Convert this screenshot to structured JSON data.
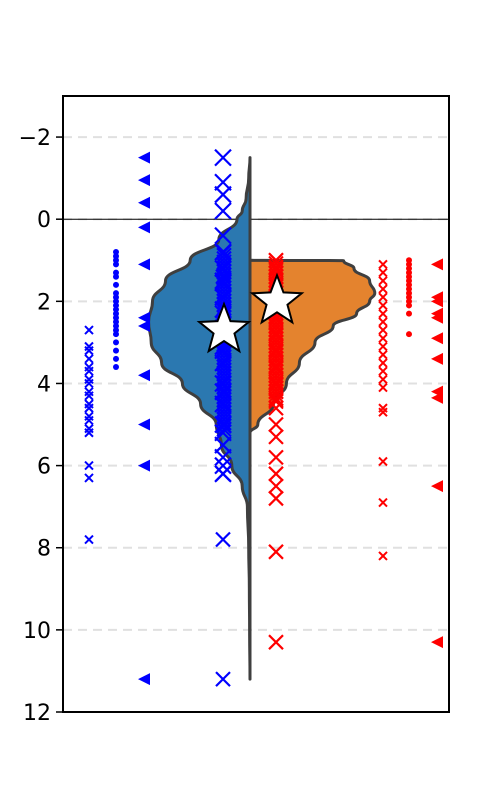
{
  "chart_data": {
    "type": "violin",
    "orientation": "vertical",
    "y_inverted": true,
    "ylim": [
      -3,
      12
    ],
    "yticks": [
      -2,
      0,
      2,
      4,
      6,
      8,
      10,
      12
    ],
    "ytick_labels": [
      "−2",
      "0",
      "2",
      "4",
      "6",
      "8",
      "10",
      "12"
    ],
    "x_ticks_shown": false,
    "grid": "horizontal dashed",
    "reference_line_y": 0,
    "colors": {
      "left_violin": "#2b78b0",
      "right_violin": "#e4832e",
      "violin_edge": "#3f3f3f",
      "left_points": "#0000ff",
      "right_points": "#ff0000",
      "grid": "#e0e0e0",
      "star_fill": "#ffffff"
    },
    "series": [
      {
        "side": "left",
        "color": "#0000ff",
        "violin_profile": [
          [
            -1.5,
            0.0
          ],
          [
            -1.0,
            0.01
          ],
          [
            -0.5,
            0.03
          ],
          [
            -0.2,
            0.06
          ],
          [
            0.0,
            0.1
          ],
          [
            0.5,
            0.24
          ],
          [
            1.0,
            0.46
          ],
          [
            1.5,
            0.65
          ],
          [
            2.0,
            0.75
          ],
          [
            2.5,
            0.78
          ],
          [
            3.0,
            0.76
          ],
          [
            3.5,
            0.68
          ],
          [
            4.0,
            0.52
          ],
          [
            4.5,
            0.38
          ],
          [
            5.0,
            0.26
          ],
          [
            5.5,
            0.22
          ],
          [
            6.0,
            0.14
          ],
          [
            6.5,
            0.06
          ],
          [
            7.0,
            0.02
          ],
          [
            8.0,
            0.01
          ],
          [
            9.0,
            0.005
          ],
          [
            10.0,
            0.003
          ],
          [
            11.2,
            0.0
          ]
        ],
        "mean": 2.7,
        "strip_x": [
          1.4,
          6.2,
          11.2,
          7.8
        ],
        "strip_y": [
          1.5,
          1.55,
          1.9,
          2.3,
          2.7,
          3.1,
          3.5,
          4.0,
          4.5,
          5.0,
          5.5,
          6.0,
          6.2,
          5.8,
          5.2,
          4.2,
          3.2,
          2.2,
          1.2,
          0.8,
          0.4,
          -0.2,
          -0.6,
          -0.9,
          -1.5
        ],
        "strip_dots": [
          0.8,
          0.9,
          1.0,
          1.1,
          1.3,
          1.4,
          1.6,
          1.8,
          1.9,
          2.0,
          2.1,
          2.2,
          2.3,
          2.4,
          2.5,
          2.6,
          2.7,
          2.8,
          3.0,
          3.2,
          3.4,
          3.6
        ],
        "strip_triangles": [
          -1.5,
          -0.95,
          -0.4,
          0.2,
          1.1,
          2.4,
          2.6,
          3.8,
          5.0,
          6.0,
          11.2
        ],
        "strip_xs_small": [
          2.7,
          3.1,
          3.2,
          3.4,
          3.6,
          3.7,
          3.9,
          4.0,
          4.2,
          4.3,
          4.5,
          4.6,
          4.8,
          4.9,
          5.1,
          5.2,
          6.0,
          6.3,
          7.8
        ]
      },
      {
        "side": "right",
        "color": "#ff0000",
        "violin_profile": [
          [
            1.0,
            0.0
          ],
          [
            1.01,
            0.72
          ],
          [
            1.2,
            0.8
          ],
          [
            1.5,
            0.92
          ],
          [
            1.8,
            0.96
          ],
          [
            2.0,
            0.92
          ],
          [
            2.3,
            0.82
          ],
          [
            2.6,
            0.64
          ],
          [
            3.0,
            0.5
          ],
          [
            3.5,
            0.38
          ],
          [
            4.0,
            0.28
          ],
          [
            4.5,
            0.18
          ],
          [
            5.0,
            0.06
          ],
          [
            5.2,
            0.0
          ]
        ],
        "mean": 2.0,
        "strip_x": [
          1.0,
          1.2,
          1.4,
          1.6,
          1.8,
          2.0,
          2.2,
          2.4,
          2.6,
          2.8,
          3.0,
          3.2,
          3.4,
          3.6,
          3.8,
          4.0,
          4.2,
          4.4,
          4.6,
          5.0,
          5.3,
          5.8,
          6.2,
          6.5,
          6.8,
          8.1,
          10.3
        ],
        "strip_xs_small": [
          1.1,
          1.3,
          1.5,
          1.7,
          1.9,
          2.1,
          2.3,
          2.5,
          2.7,
          2.9,
          3.1,
          3.3,
          3.5,
          3.7,
          3.9,
          4.1,
          4.6,
          4.7,
          5.9,
          6.9,
          8.2
        ],
        "strip_dots": [
          1.0,
          1.1,
          1.2,
          1.3,
          1.4,
          1.5,
          1.6,
          1.7,
          1.8,
          1.9,
          2.0,
          2.1,
          2.3,
          2.8
        ],
        "strip_triangles": [
          1.1,
          1.9,
          2.0,
          2.3,
          2.4,
          2.9,
          3.4,
          4.2,
          4.35,
          6.5,
          10.3
        ]
      }
    ]
  }
}
